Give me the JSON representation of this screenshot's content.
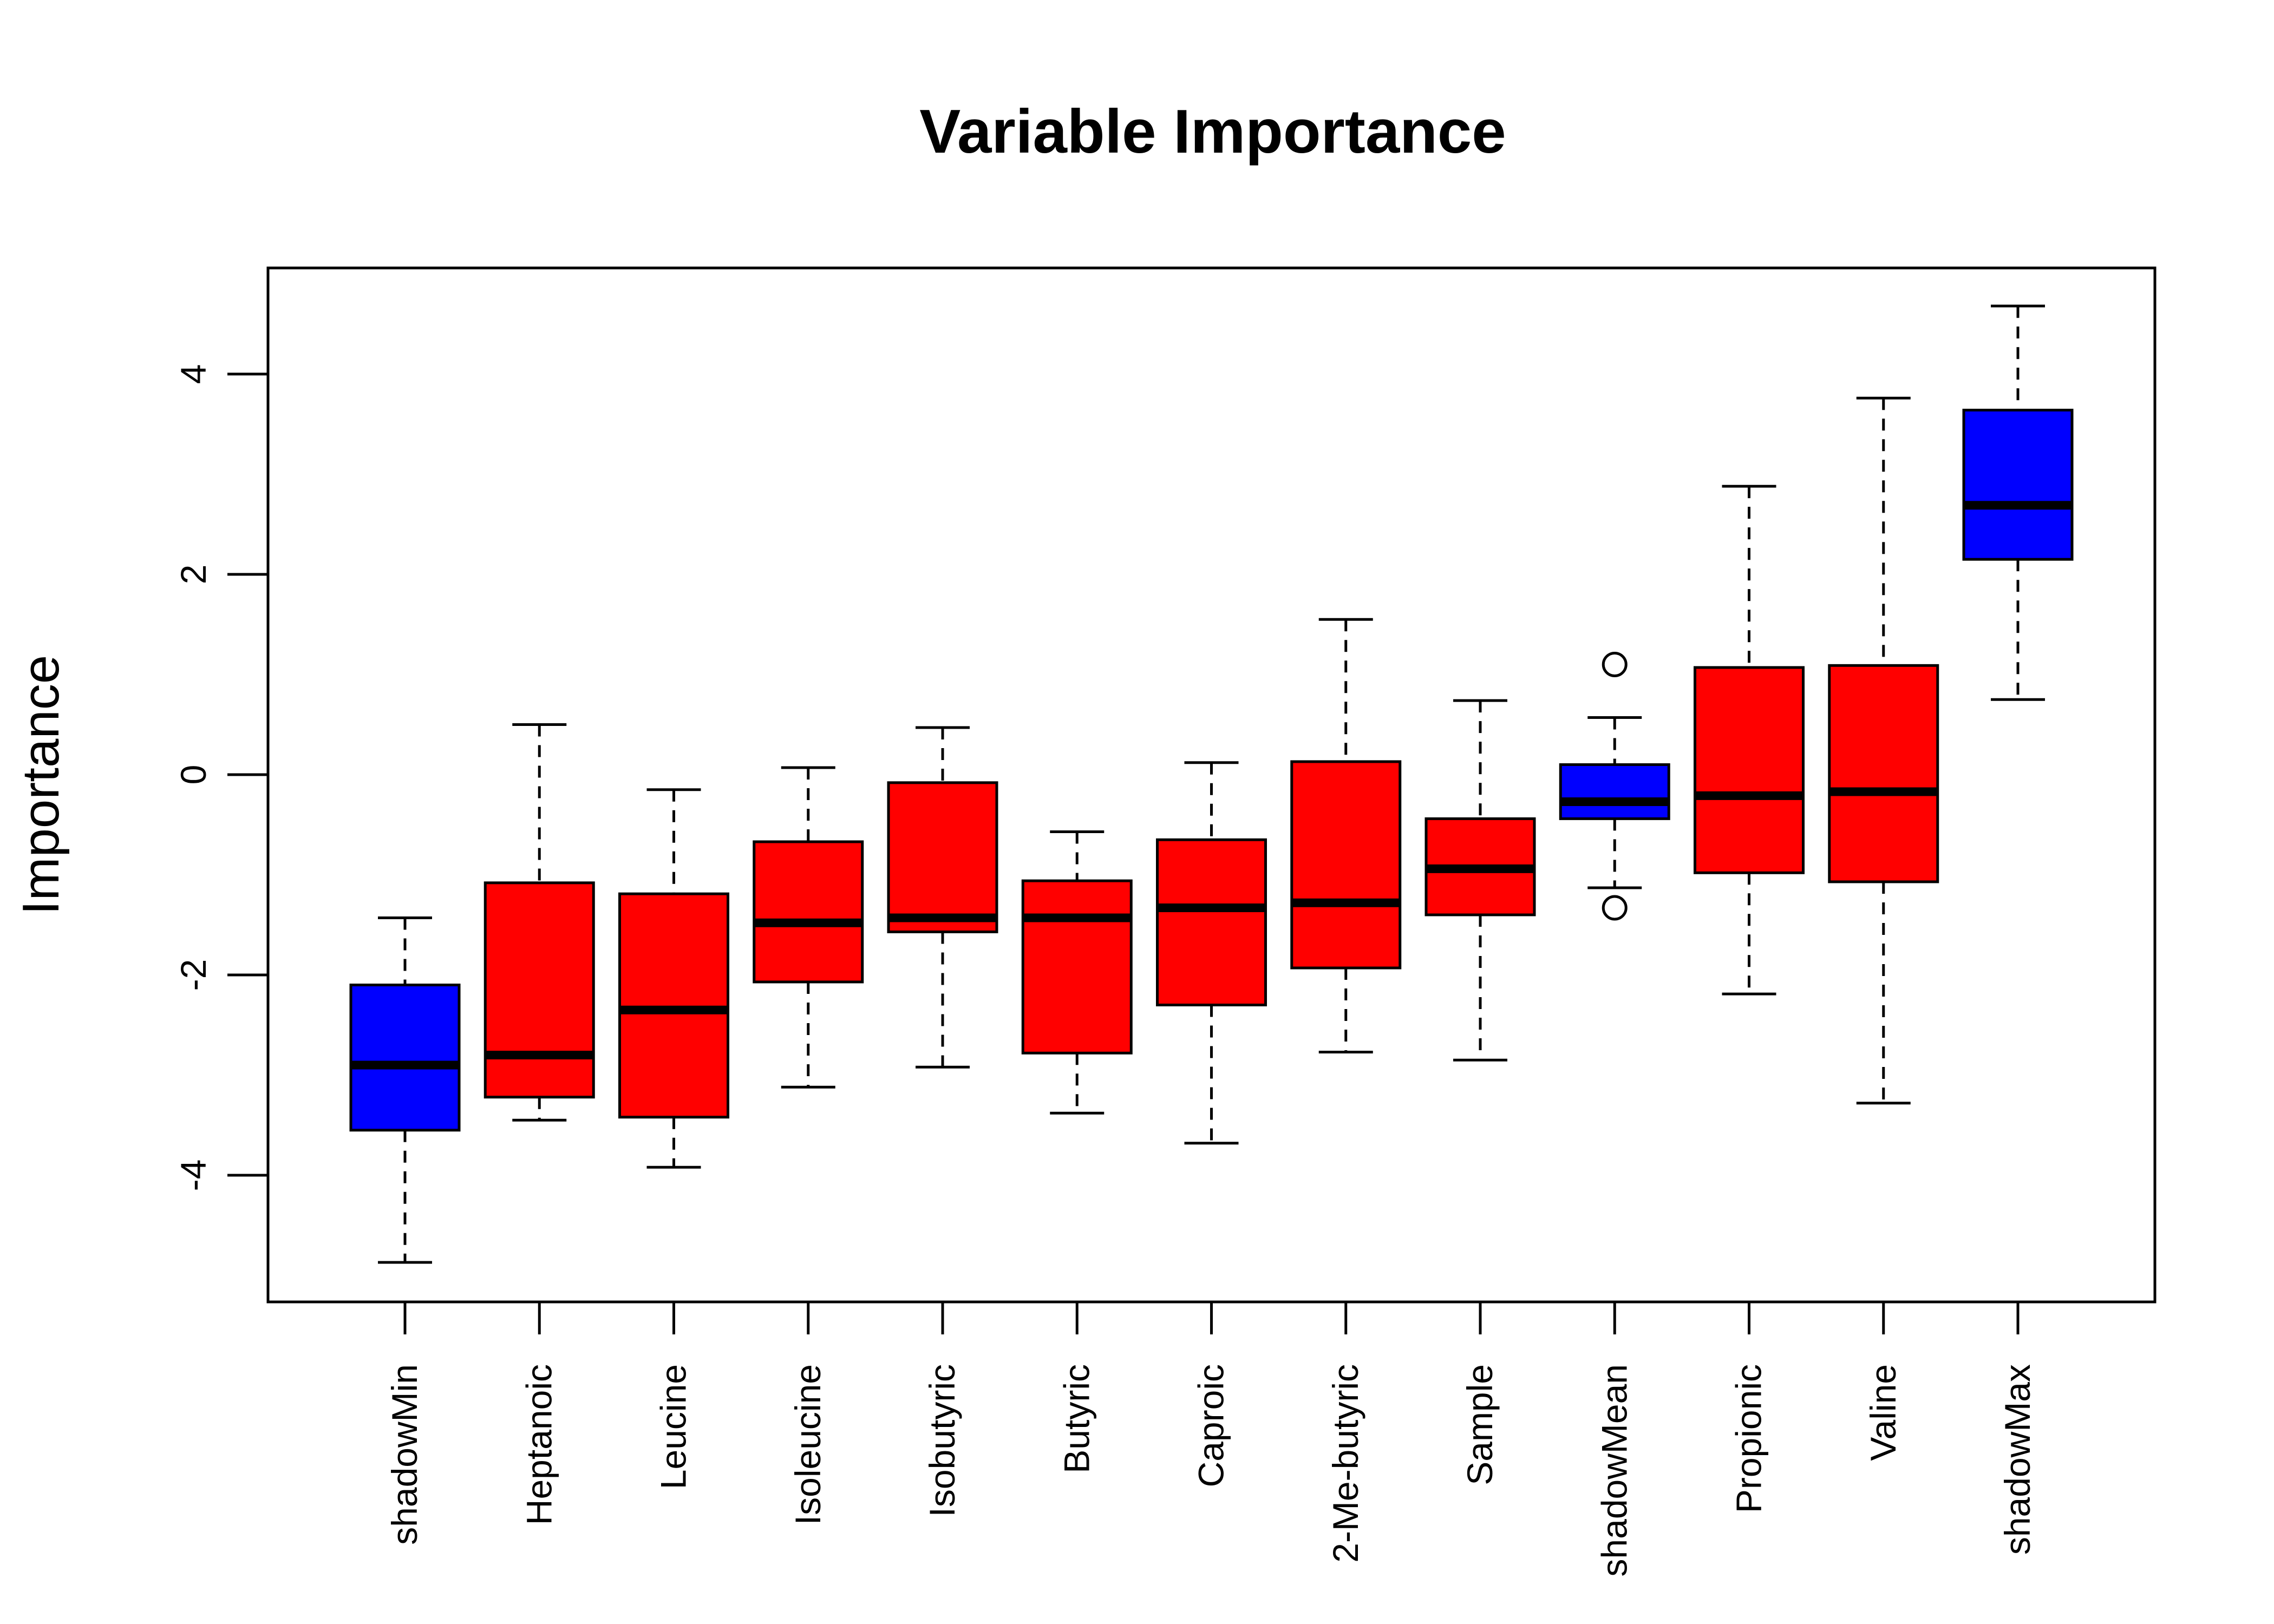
{
  "chart_data": {
    "type": "boxplot",
    "title": "Variable Importance",
    "xlabel": "",
    "ylabel": "Importance",
    "ylim": [
      -5.2,
      5.1
    ],
    "yticks": [
      -4,
      -2,
      0,
      2,
      4
    ],
    "grid": false,
    "legend": "none",
    "colors": {
      "shadow": "#0000FF",
      "attribute": "#FF0000"
    },
    "categories": [
      "shadowMin",
      "Heptanoic",
      "Leucine",
      "Isoleucine",
      "Isobutyric",
      "Butyric",
      "Caproic",
      "2-Me-butyric",
      "Sample",
      "shadowMean",
      "Propionic",
      "Valine",
      "shadowMax"
    ],
    "boxes": [
      {
        "name": "shadowMin",
        "group": "shadow",
        "min": -4.87,
        "q1": -3.55,
        "median": -2.9,
        "q3": -2.1,
        "max": -1.43,
        "outliers": []
      },
      {
        "name": "Heptanoic",
        "group": "attribute",
        "min": -3.45,
        "q1": -3.22,
        "median": -2.8,
        "q3": -1.08,
        "max": 0.5,
        "outliers": []
      },
      {
        "name": "Leucine",
        "group": "attribute",
        "min": -3.92,
        "q1": -3.42,
        "median": -2.35,
        "q3": -1.19,
        "max": -0.15,
        "outliers": []
      },
      {
        "name": "Isoleucine",
        "group": "attribute",
        "min": -3.12,
        "q1": -2.07,
        "median": -1.48,
        "q3": -0.67,
        "max": 0.07,
        "outliers": []
      },
      {
        "name": "Isobutyric",
        "group": "attribute",
        "min": -2.92,
        "q1": -1.57,
        "median": -1.43,
        "q3": -0.08,
        "max": 0.47,
        "outliers": []
      },
      {
        "name": "Butyric",
        "group": "attribute",
        "min": -3.38,
        "q1": -2.78,
        "median": -1.43,
        "q3": -1.06,
        "max": -0.57,
        "outliers": []
      },
      {
        "name": "Caproic",
        "group": "attribute",
        "min": -3.68,
        "q1": -2.3,
        "median": -1.33,
        "q3": -0.65,
        "max": 0.12,
        "outliers": []
      },
      {
        "name": "2-Me-butyric",
        "group": "attribute",
        "min": -2.77,
        "q1": -1.93,
        "median": -1.28,
        "q3": 0.13,
        "max": 1.55,
        "outliers": []
      },
      {
        "name": "Sample",
        "group": "attribute",
        "min": -2.85,
        "q1": -1.4,
        "median": -0.94,
        "q3": -0.44,
        "max": 0.74,
        "outliers": []
      },
      {
        "name": "shadowMean",
        "group": "shadow",
        "min": -1.13,
        "q1": -0.44,
        "median": -0.27,
        "q3": 0.1,
        "max": 0.57,
        "outliers": [
          1.1,
          -1.33
        ]
      },
      {
        "name": "Propionic",
        "group": "attribute",
        "min": -2.19,
        "q1": -0.98,
        "median": -0.21,
        "q3": 1.07,
        "max": 2.88,
        "outliers": []
      },
      {
        "name": "Valine",
        "group": "attribute",
        "min": -3.28,
        "q1": -1.07,
        "median": -0.17,
        "q3": 1.09,
        "max": 3.76,
        "outliers": []
      },
      {
        "name": "shadowMax",
        "group": "shadow",
        "min": 0.75,
        "q1": 2.15,
        "median": 2.69,
        "q3": 3.64,
        "max": 4.68,
        "outliers": []
      }
    ]
  }
}
